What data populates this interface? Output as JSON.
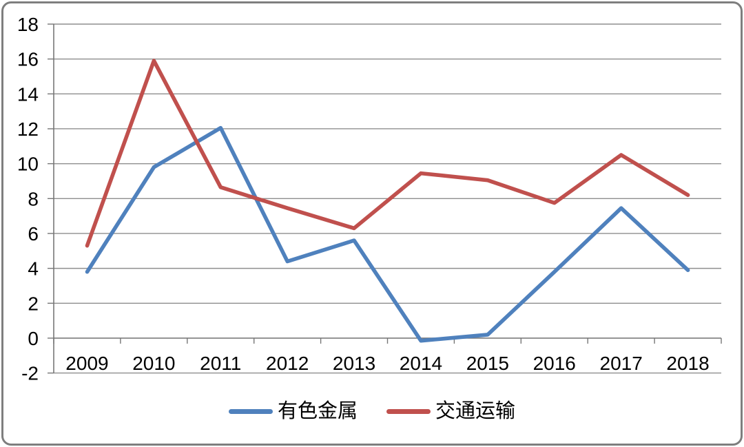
{
  "chart_data": {
    "type": "line",
    "title": "",
    "xlabel": "",
    "ylabel": "",
    "categories": [
      "2009",
      "2010",
      "2011",
      "2012",
      "2013",
      "2014",
      "2015",
      "2016",
      "2017",
      "2018"
    ],
    "series": [
      {
        "name": "有色金属",
        "color": "#4F81BD",
        "values": [
          3.8,
          9.8,
          12.05,
          4.4,
          5.6,
          -0.15,
          0.2,
          3.8,
          7.45,
          3.9
        ]
      },
      {
        "name": "交通运输",
        "color": "#C0504D",
        "values": [
          5.3,
          15.9,
          8.65,
          7.45,
          6.3,
          9.45,
          9.05,
          7.75,
          10.5,
          8.2
        ]
      }
    ],
    "ylim": [
      -2,
      18
    ],
    "yticks": [
      18,
      16,
      14,
      12,
      10,
      8,
      6,
      4,
      2,
      0,
      -2
    ],
    "grid": true,
    "markers": false,
    "legend_position": "bottom",
    "colors": {
      "grid": "#8e8e8e",
      "axis": "#767676",
      "tick_text": "#000000",
      "frame_border": "#7e7e7e",
      "background": "#ffffff"
    }
  }
}
